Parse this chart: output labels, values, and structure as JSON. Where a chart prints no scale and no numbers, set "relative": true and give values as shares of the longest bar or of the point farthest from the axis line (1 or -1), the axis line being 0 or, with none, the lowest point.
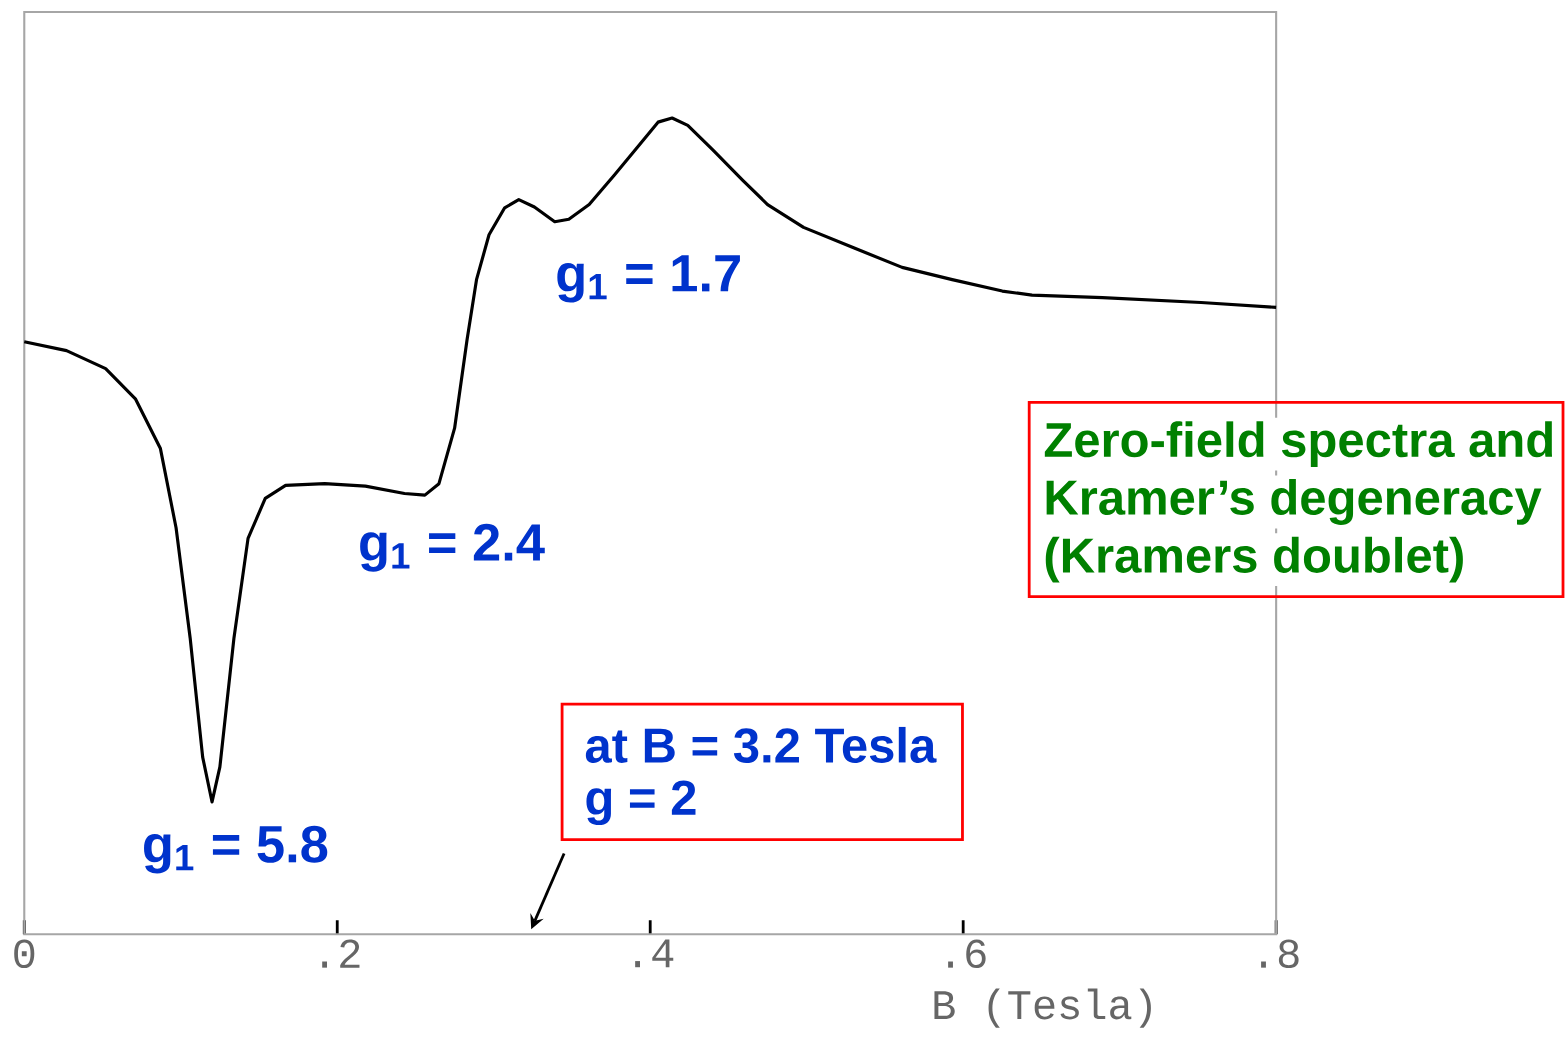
{
  "chart_data": {
    "type": "line",
    "xlabel": "B  (Tesla)",
    "relative": true,
    "color": "#000000",
    "xlim": [
      0,
      0.8
    ],
    "xticks": [
      {
        "value": 0,
        "label": "0"
      },
      {
        "value": 0.2,
        "label": ".2"
      },
      {
        "value": 0.4,
        "label": ".4"
      },
      {
        "value": 0.6,
        "label": ".6"
      },
      {
        "value": 0.8,
        "label": ".8"
      }
    ],
    "x": [
      0,
      0.027,
      0.052,
      0.071,
      0.087,
      0.097,
      0.106,
      0.114,
      0.12,
      0.125,
      0.134,
      0.143,
      0.154,
      0.167,
      0.192,
      0.218,
      0.243,
      0.256,
      0.265,
      0.275,
      0.283,
      0.289,
      0.297,
      0.307,
      0.316,
      0.326,
      0.339,
      0.348,
      0.361,
      0.377,
      0.393,
      0.405,
      0.414,
      0.424,
      0.44,
      0.459,
      0.475,
      0.498,
      0.53,
      0.561,
      0.593,
      0.625,
      0.644,
      0.689,
      0.752,
      0.8
    ],
    "values": [
      0.726,
      0.715,
      0.693,
      0.656,
      0.595,
      0.498,
      0.363,
      0.217,
      0.162,
      0.205,
      0.363,
      0.485,
      0.534,
      0.55,
      0.552,
      0.549,
      0.54,
      0.538,
      0.552,
      0.62,
      0.729,
      0.802,
      0.857,
      0.89,
      0.9,
      0.891,
      0.873,
      0.876,
      0.894,
      0.93,
      0.967,
      0.995,
      1.0,
      0.991,
      0.961,
      0.924,
      0.894,
      0.866,
      0.841,
      0.817,
      0.802,
      0.788,
      0.783,
      0.78,
      0.774,
      0.768
    ],
    "annotations": [
      "g$_{1}$ = 5.8",
      "g$_{1}$ = 2.4",
      "g$_{1}$ = 1.7",
      "at  B = 3.2 Tesla",
      "g = 2",
      "Zero-field spectra and",
      "Kramer’s degeneracy",
      "(Kramers doublet)"
    ]
  }
}
